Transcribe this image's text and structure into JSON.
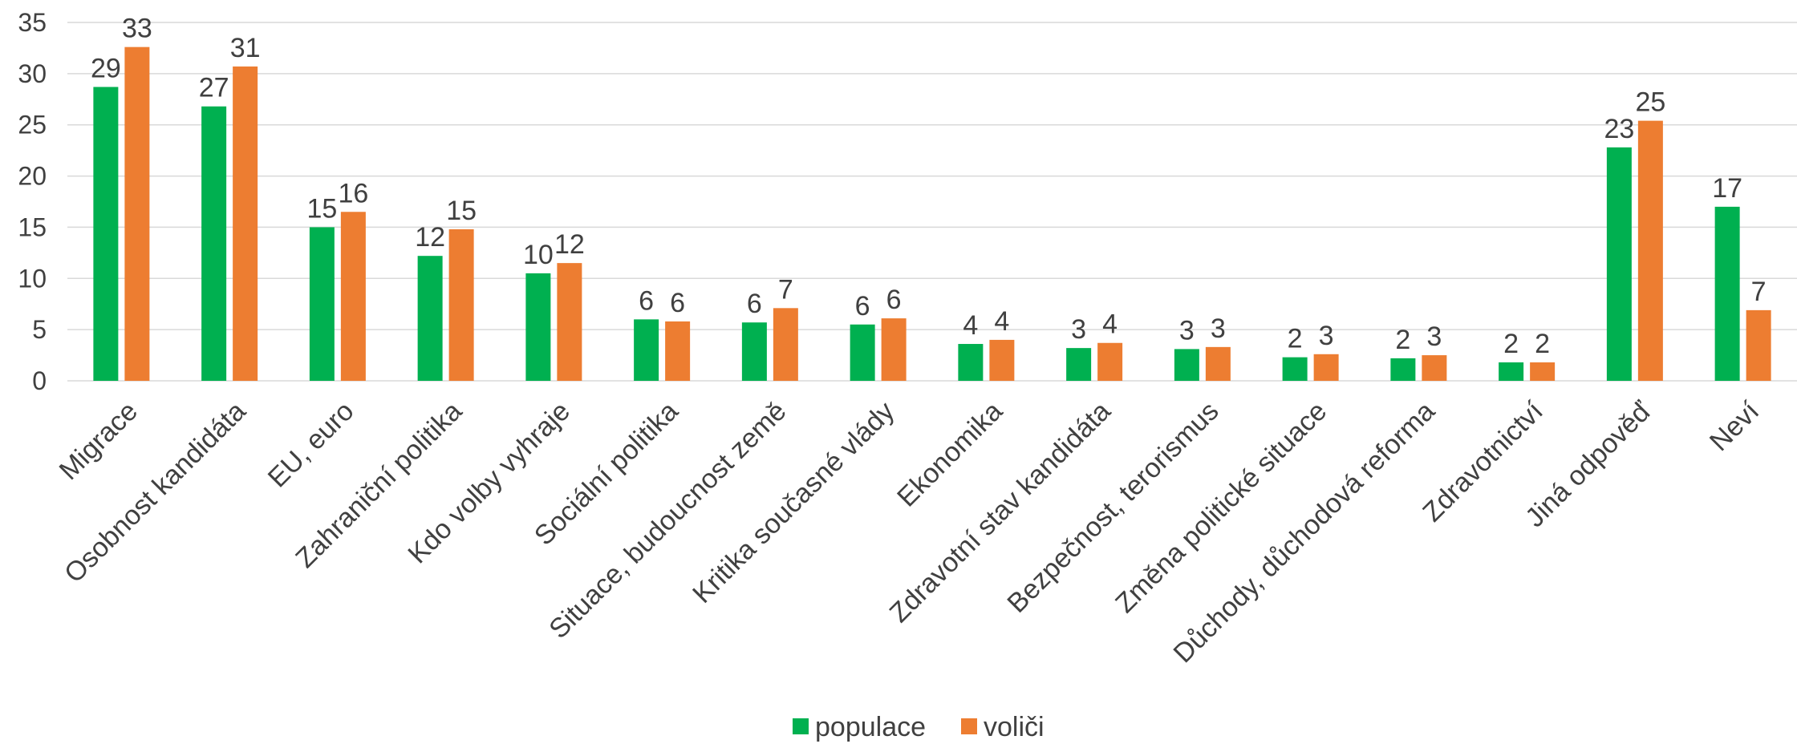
{
  "chart_data": {
    "type": "bar",
    "categories": [
      "Migrace",
      "Osobnost kandidáta",
      "EU, euro",
      "Zahraniční politika",
      "Kdo volby vyhraje",
      "Sociální politika",
      "Situace, budoucnost země",
      "Kritika současné vlády",
      "Ekonomika",
      "Zdravotní stav kandidáta",
      "Bezpečnost, terorismus",
      "Změna politické situace",
      "Důchody, důchodová reforma",
      "Zdravotnictví",
      "Jiná odpověď",
      "Neví"
    ],
    "series": [
      {
        "name": "populace",
        "color": "#00b050",
        "values": [
          28.7,
          26.8,
          15.0,
          12.2,
          10.5,
          6.0,
          5.7,
          5.5,
          3.6,
          3.2,
          3.1,
          2.3,
          2.2,
          1.8,
          22.8,
          17.0
        ],
        "labels": [
          "29",
          "27",
          "15",
          "12",
          "10",
          "6",
          "6",
          "6",
          "4",
          "3",
          "3",
          "2",
          "2",
          "2",
          "23",
          "17"
        ]
      },
      {
        "name": "voliči",
        "color": "#ed7d31",
        "values": [
          32.6,
          30.7,
          16.5,
          14.8,
          11.5,
          5.8,
          7.1,
          6.1,
          4.0,
          3.7,
          3.3,
          2.6,
          2.5,
          1.8,
          25.4,
          6.9
        ],
        "labels": [
          "33",
          "31",
          "16",
          "15",
          "12",
          "6",
          "7",
          "6",
          "4",
          "4",
          "3",
          "3",
          "3",
          "2",
          "25",
          "7"
        ]
      }
    ],
    "yticks": [
      "0",
      "5",
      "10",
      "15",
      "20",
      "25",
      "30",
      "35"
    ],
    "ylim": [
      0,
      35
    ],
    "grid": true,
    "legend": "bottom"
  }
}
